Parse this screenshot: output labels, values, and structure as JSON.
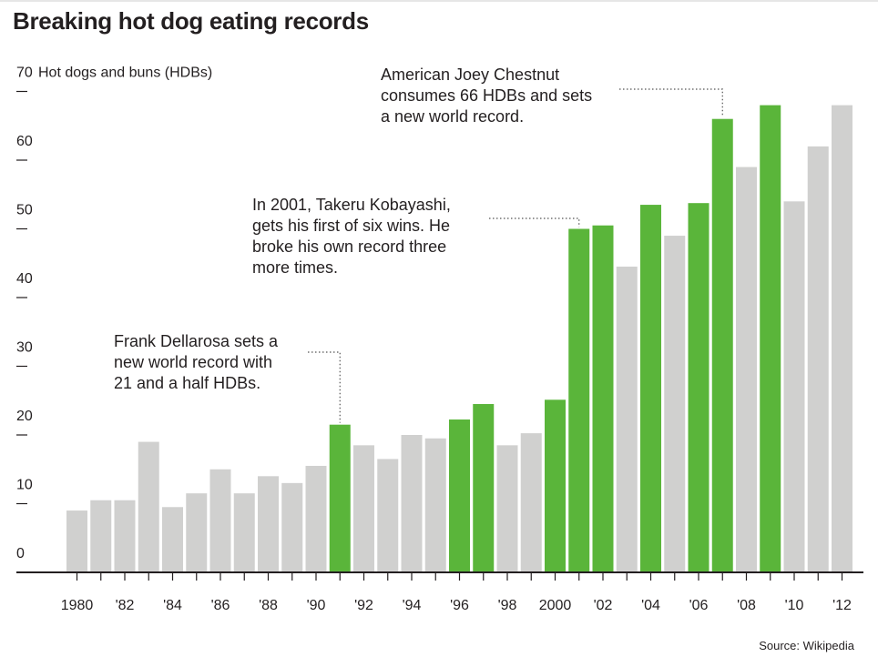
{
  "title": "Breaking hot dog eating records",
  "source": "Source: Wikipedia",
  "colors": {
    "record": "#5ab53a",
    "normal": "#d0d0cf",
    "axis": "#231f20"
  },
  "chart_data": {
    "type": "bar",
    "ylabel": "Hot dogs and buns (HDBs)",
    "ylim": [
      0,
      70
    ],
    "yticks": [
      0,
      10,
      20,
      30,
      40,
      50,
      60,
      70
    ],
    "categories": [
      "1980",
      "1981",
      "1982",
      "1983",
      "1984",
      "1985",
      "1986",
      "1987",
      "1988",
      "1989",
      "1990",
      "1991",
      "1992",
      "1993",
      "1994",
      "1995",
      "1996",
      "1997",
      "1998",
      "1999",
      "2000",
      "2001",
      "2002",
      "2003",
      "2004",
      "2005",
      "2006",
      "2007",
      "2008",
      "2009",
      "2010",
      "2011",
      "2012"
    ],
    "xtick_labels": [
      "1980",
      "'82",
      "'84",
      "'86",
      "'88",
      "'90",
      "'92",
      "'94",
      "'96",
      "'98",
      "2000",
      "'02",
      "'04",
      "'06",
      "'08",
      "'10",
      "'12"
    ],
    "values": [
      9,
      10.5,
      10.5,
      19,
      9.5,
      11.5,
      15,
      11.5,
      14,
      13,
      15.5,
      21.5,
      18.5,
      16.5,
      20,
      19.5,
      22.25,
      24.5,
      18.5,
      20.25,
      25.125,
      50,
      50.5,
      44.5,
      53.5,
      49,
      53.75,
      66,
      59,
      68,
      54,
      62,
      68
    ],
    "records": [
      false,
      false,
      false,
      false,
      false,
      false,
      false,
      false,
      false,
      false,
      false,
      true,
      false,
      false,
      false,
      false,
      true,
      true,
      false,
      false,
      true,
      true,
      true,
      false,
      true,
      false,
      true,
      true,
      false,
      true,
      false,
      false,
      false
    ],
    "grid": false,
    "annotations": [
      {
        "year": "1991",
        "lines": [
          "Frank Dellarosa sets a",
          "new world record with",
          "21 and a half HDBs."
        ]
      },
      {
        "year": "2001",
        "lines": [
          "In 2001, Takeru Kobayashi,",
          "gets his first of six wins. He",
          "broke his own record three",
          "more times."
        ]
      },
      {
        "year": "2007",
        "lines": [
          "American Joey Chestnut",
          "consumes 66 HDBs and sets",
          "a new world record."
        ]
      }
    ]
  }
}
